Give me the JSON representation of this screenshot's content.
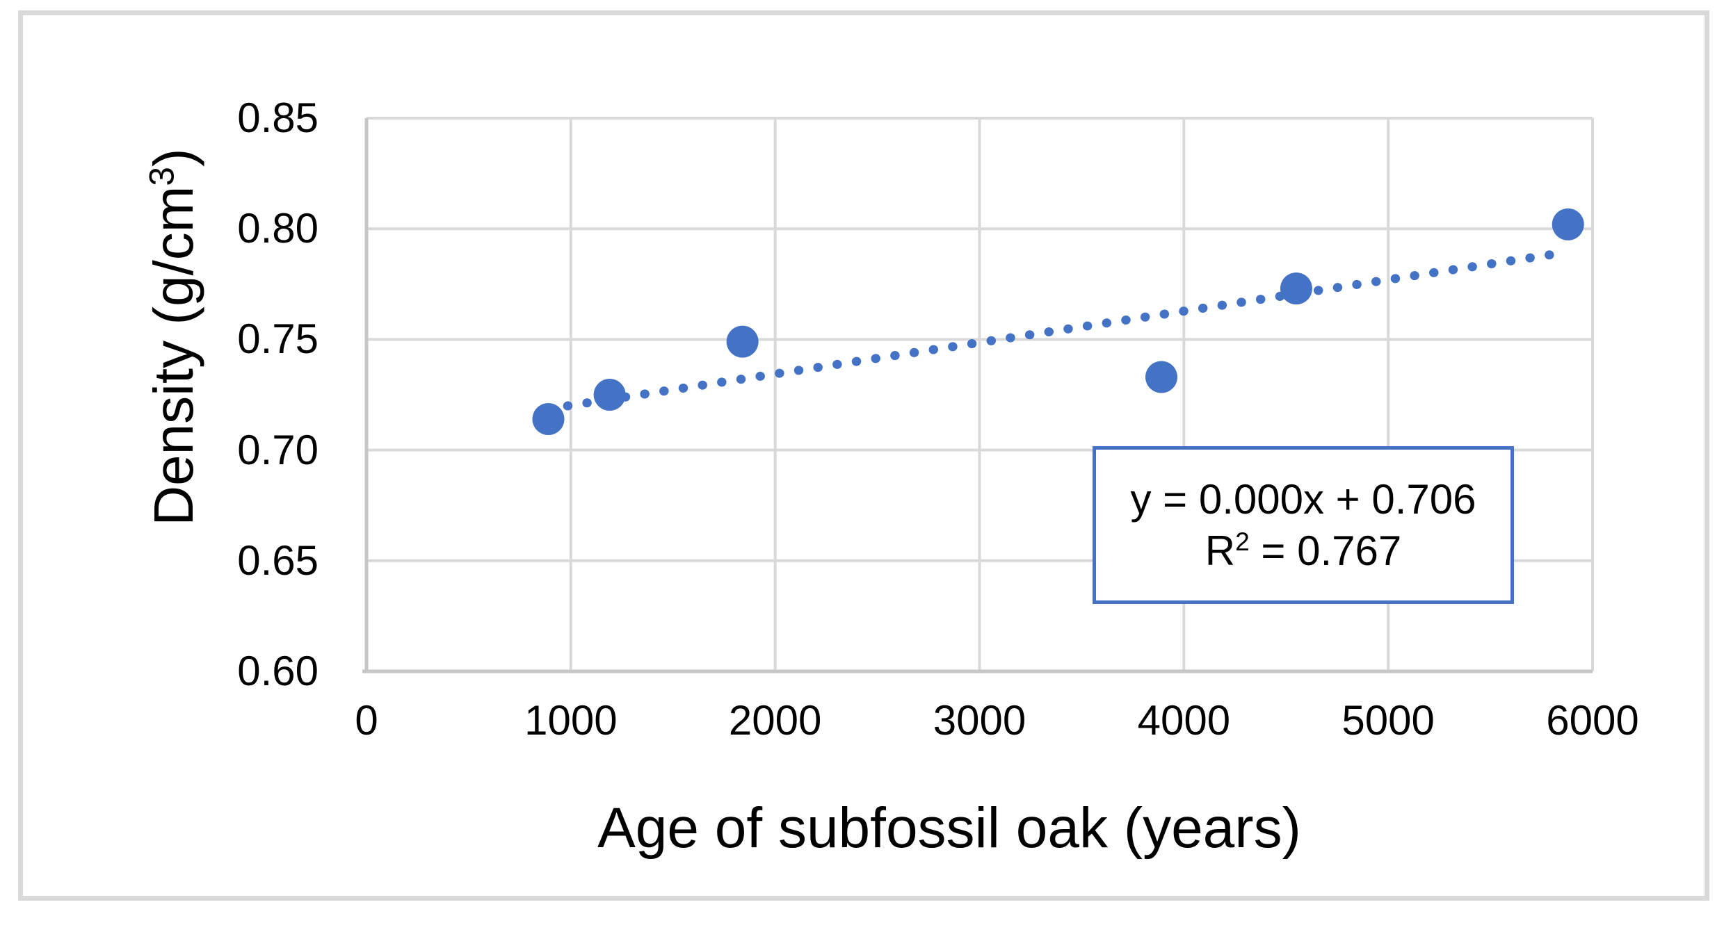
{
  "chart_data": {
    "type": "scatter",
    "title": "",
    "xlabel": "Age of subfossil oak (years)",
    "ylabel": "Density (g/cm³)",
    "x": [
      890,
      1190,
      1840,
      3890,
      4550,
      5880
    ],
    "y": [
      0.714,
      0.725,
      0.749,
      0.733,
      0.773,
      0.802
    ],
    "xlim": [
      0,
      6000
    ],
    "ylim": [
      0.6,
      0.85
    ],
    "x_tick_labels": [
      "0",
      "1000",
      "2000",
      "3000",
      "4000",
      "5000",
      "6000"
    ],
    "x_tick_values": [
      0,
      1000,
      2000,
      3000,
      4000,
      5000,
      6000
    ],
    "y_tick_labels": [
      "0.60",
      "0.65",
      "0.70",
      "0.75",
      "0.80",
      "0.85"
    ],
    "y_tick_values": [
      0.6,
      0.65,
      0.7,
      0.75,
      0.8,
      0.85
    ],
    "grid": true,
    "legend": "none",
    "marker_color": "#4472C4",
    "gridline_color": "#D9D9D9",
    "axis_line_color": "#C6C6C6",
    "trendline": {
      "style": "dotted",
      "color": "#4472C4",
      "slope": 1.42e-05,
      "intercept": 0.706,
      "x_start": 890,
      "x_end": 5880,
      "equation_label": "y = 0.000x + 0.706",
      "r2_label": "R² = 0.767"
    }
  },
  "x_axis": {
    "title": "Age of subfossil oak (years)"
  },
  "y_axis": {
    "title_prefix": "Density (g/cm",
    "title_sup": "3",
    "title_suffix": ")"
  },
  "equation_box": {
    "line1": "y = 0.000x + 0.706",
    "r2_prefix": "R",
    "r2_sup": "2",
    "r2_suffix": " = 0.767"
  },
  "colors": {
    "accent": "#4472C4",
    "gridline": "#D9D9D9",
    "frame_border": "#D9D9D9",
    "text": "#000000"
  }
}
